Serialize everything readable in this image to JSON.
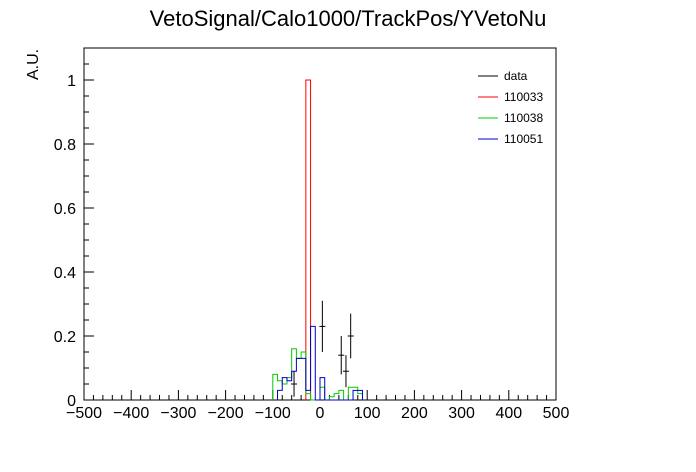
{
  "chart_data": {
    "type": "histogram",
    "title": "VetoSignal/Calo1000/TrackPos/YVetoNu",
    "xlabel": "",
    "ylabel": "A.U.",
    "xlim": [
      -500,
      500
    ],
    "ylim": [
      0,
      1.1
    ],
    "bin_width": 10,
    "x_ticks": [
      "−500",
      "−400",
      "−300",
      "−200",
      "−100",
      "0",
      "100",
      "200",
      "300",
      "400",
      "500"
    ],
    "y_ticks": [
      "0",
      "0.2",
      "0.4",
      "0.6",
      "0.8",
      "1"
    ],
    "legend_position": "top-right",
    "grid": false,
    "series": [
      {
        "name": "data",
        "color": "#000000",
        "style": "points-with-errors",
        "points": [
          {
            "x": -55,
            "y": 0.05,
            "err": 0.04
          },
          {
            "x": 5,
            "y": 0.23,
            "err": 0.08
          },
          {
            "x": 45,
            "y": 0.14,
            "err": 0.06
          },
          {
            "x": 55,
            "y": 0.09,
            "err": 0.05
          },
          {
            "x": 65,
            "y": 0.2,
            "err": 0.07
          }
        ]
      },
      {
        "name": "110033",
        "color": "#ff0000",
        "style": "step",
        "bins": [
          {
            "x0": -30,
            "x1": -20,
            "y": 1.0
          }
        ]
      },
      {
        "name": "110038",
        "color": "#00cc00",
        "style": "step",
        "bins": [
          {
            "x0": -100,
            "x1": -90,
            "y": 0.08
          },
          {
            "x0": -90,
            "x1": -80,
            "y": 0.06
          },
          {
            "x0": -80,
            "x1": -70,
            "y": 0.05
          },
          {
            "x0": -70,
            "x1": -60,
            "y": 0.07
          },
          {
            "x0": -60,
            "x1": -50,
            "y": 0.16
          },
          {
            "x0": -50,
            "x1": -40,
            "y": 0.13
          },
          {
            "x0": -40,
            "x1": -30,
            "y": 0.15
          },
          {
            "x0": -30,
            "x1": -20,
            "y": 0.02
          },
          {
            "x0": -20,
            "x1": -10,
            "y": 0.0
          },
          {
            "x0": -10,
            "x1": 0,
            "y": 0.0
          },
          {
            "x0": 0,
            "x1": 10,
            "y": 0.04
          },
          {
            "x0": 10,
            "x1": 20,
            "y": 0.0
          },
          {
            "x0": 20,
            "x1": 30,
            "y": 0.01
          },
          {
            "x0": 30,
            "x1": 40,
            "y": 0.02
          },
          {
            "x0": 40,
            "x1": 50,
            "y": 0.03
          },
          {
            "x0": 50,
            "x1": 60,
            "y": 0.0
          },
          {
            "x0": 60,
            "x1": 70,
            "y": 0.04
          },
          {
            "x0": 70,
            "x1": 80,
            "y": 0.04
          },
          {
            "x0": 80,
            "x1": 90,
            "y": 0.02
          }
        ]
      },
      {
        "name": "110051",
        "color": "#0000cc",
        "style": "step",
        "bins": [
          {
            "x0": -90,
            "x1": -80,
            "y": 0.03
          },
          {
            "x0": -80,
            "x1": -70,
            "y": 0.07
          },
          {
            "x0": -70,
            "x1": -60,
            "y": 0.06
          },
          {
            "x0": -60,
            "x1": -50,
            "y": 0.09
          },
          {
            "x0": -50,
            "x1": -40,
            "y": 0.13
          },
          {
            "x0": -40,
            "x1": -30,
            "y": 0.13
          },
          {
            "x0": -30,
            "x1": -20,
            "y": 0.03
          },
          {
            "x0": -20,
            "x1": -10,
            "y": 0.23
          },
          {
            "x0": -10,
            "x1": 0,
            "y": 0.0
          },
          {
            "x0": 0,
            "x1": 10,
            "y": 0.07
          },
          {
            "x0": 10,
            "x1": 20,
            "y": 0.0
          },
          {
            "x0": 20,
            "x1": 30,
            "y": 0.0
          },
          {
            "x0": 30,
            "x1": 40,
            "y": 0.0
          },
          {
            "x0": 40,
            "x1": 50,
            "y": 0.0
          },
          {
            "x0": 50,
            "x1": 60,
            "y": 0.0
          },
          {
            "x0": 60,
            "x1": 70,
            "y": 0.0
          },
          {
            "x0": 70,
            "x1": 80,
            "y": 0.03
          },
          {
            "x0": 80,
            "x1": 90,
            "y": 0.03
          }
        ]
      }
    ]
  }
}
